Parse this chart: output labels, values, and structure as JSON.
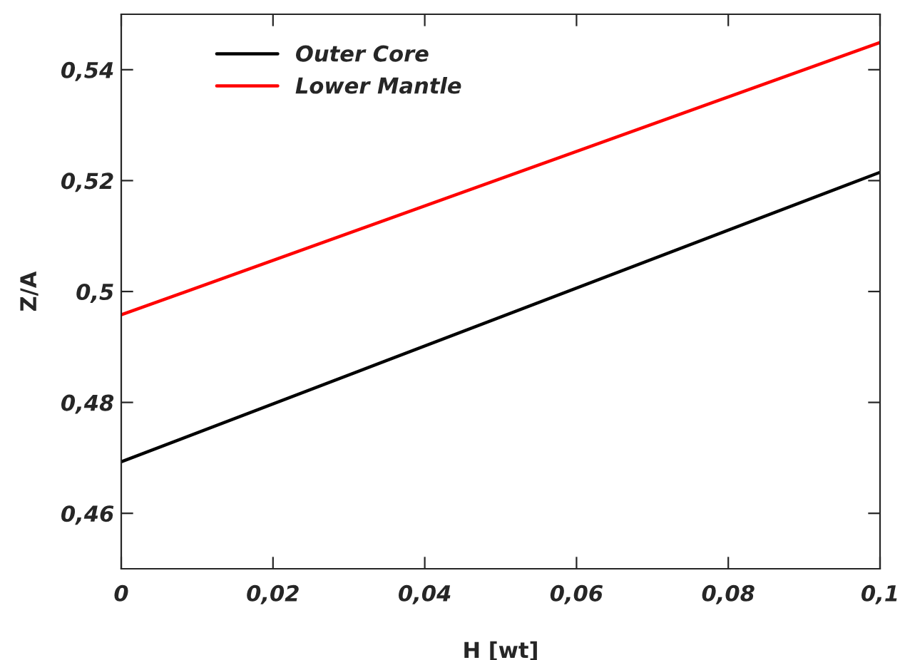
{
  "chart_data": {
    "type": "line",
    "xlabel": "H [wt]",
    "ylabel": "Z/A",
    "x": [
      0,
      0.1
    ],
    "series": [
      {
        "name": "Outer Core",
        "color": "#000000",
        "values": [
          0.4693,
          0.5215
        ]
      },
      {
        "name": "Lower Mantle",
        "color": "#ff0000",
        "values": [
          0.4958,
          0.5449
        ]
      }
    ],
    "xlim": [
      0,
      0.1
    ],
    "ylim": [
      0.45,
      0.55
    ],
    "xticks": [
      0,
      {
        "value": 0.02,
        "label": "0,02"
      },
      {
        "value": 0.04,
        "label": "0,04"
      },
      {
        "value": 0.06,
        "label": "0,06"
      },
      {
        "value": 0.08,
        "label": "0,08"
      },
      {
        "value": 0.1,
        "label": "0,1"
      }
    ],
    "yticks": [
      {
        "value": 0.46,
        "label": "0,46"
      },
      {
        "value": 0.48,
        "label": "0,48"
      },
      {
        "value": 0.5,
        "label": "0,5"
      },
      {
        "value": 0.52,
        "label": "0,52"
      },
      {
        "value": 0.54,
        "label": "0,54"
      }
    ],
    "legend": "top left",
    "grid": false,
    "line_style": "solid",
    "marker": "none"
  }
}
